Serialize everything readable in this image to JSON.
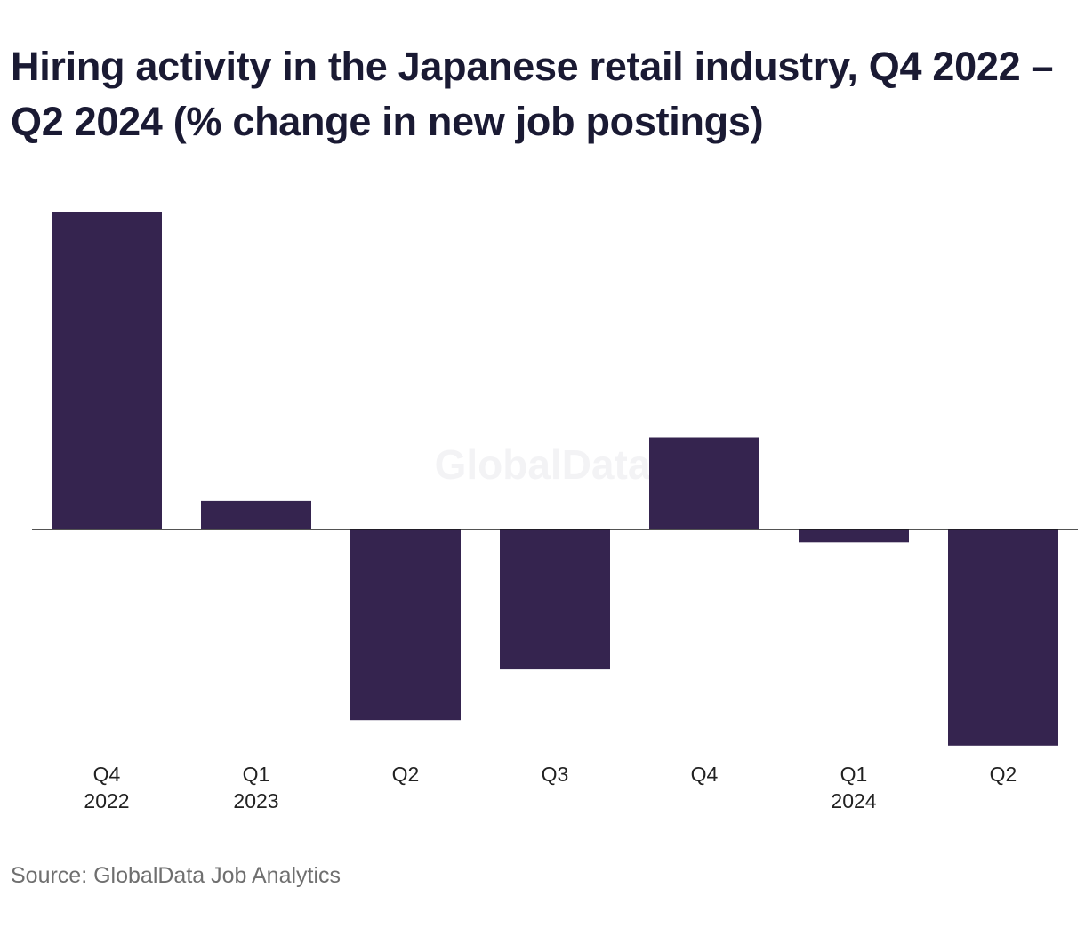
{
  "chart_data": {
    "type": "bar",
    "title": "Hiring activity in the Japanese retail industry, Q4 2022 – Q2 2024 (% change in new job postings)",
    "categories": [
      {
        "quarter": "Q4",
        "year": "2022"
      },
      {
        "quarter": "Q1",
        "year": "2023"
      },
      {
        "quarter": "Q2",
        "year": ""
      },
      {
        "quarter": "Q3",
        "year": ""
      },
      {
        "quarter": "Q4",
        "year": ""
      },
      {
        "quarter": "Q1",
        "year": "2024"
      },
      {
        "quarter": "Q2",
        "year": ""
      }
    ],
    "values": [
      100,
      9,
      -60,
      -44,
      29,
      -4,
      -68
    ],
    "ylim": [
      -70,
      105
    ],
    "xlabel": "",
    "ylabel": "",
    "grid": false,
    "zero_line": true,
    "bar_color": "#35244f",
    "watermark": "GlobalData"
  },
  "source": "Source: GlobalData Job Analytics"
}
